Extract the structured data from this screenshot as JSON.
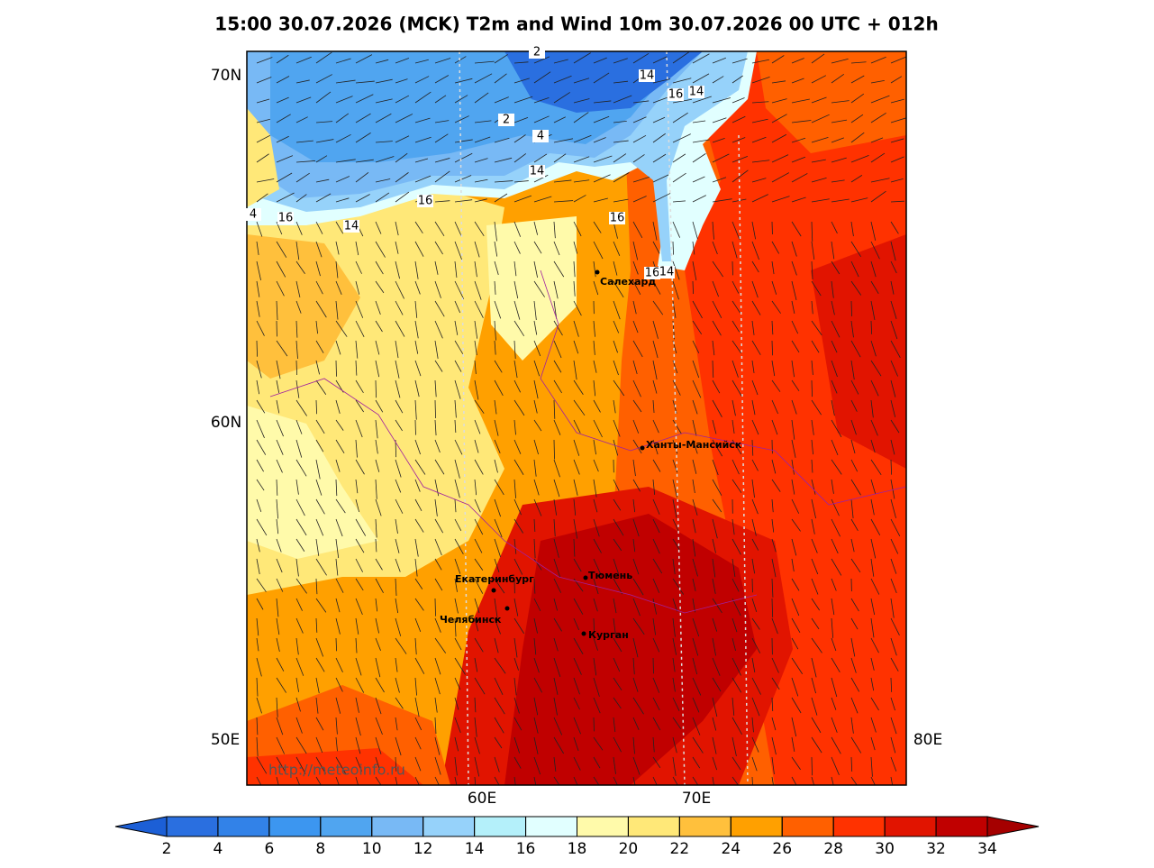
{
  "title": "15:00 30.07.2026 (MCK) T2m and Wind 10m 30.07.2026 00 UTC + 012h",
  "axes": {
    "lat": [
      "70N",
      "60N"
    ],
    "lon_side": [
      "50E",
      "80E"
    ],
    "lon_bottom": [
      "60E",
      "70E"
    ]
  },
  "cities": [
    "Салехард",
    "Ханты-Мансийск",
    "Екатеринбург",
    "Тюмень",
    "Челябинск",
    "Курган"
  ],
  "contour_labels": [
    "2",
    "14",
    "16",
    "14",
    "2",
    "4",
    "14",
    "16",
    "16",
    "4",
    "16",
    "14",
    "16",
    "14"
  ],
  "watermark": "http://meteoinfo.ru",
  "colorbar": {
    "ticks": [
      2,
      4,
      6,
      8,
      10,
      12,
      14,
      16,
      18,
      20,
      22,
      24,
      26,
      28,
      30,
      32,
      34
    ],
    "colors": [
      "#1c5fd6",
      "#2a6fe0",
      "#3282e8",
      "#3c96f0",
      "#50a5f0",
      "#78b9f5",
      "#96d2fa",
      "#b4f0fa",
      "#e1ffff",
      "#fffaaa",
      "#ffe878",
      "#ffc03c",
      "#ffa000",
      "#ff6000",
      "#ff3200",
      "#e11400",
      "#c00000",
      "#a50000"
    ]
  }
}
